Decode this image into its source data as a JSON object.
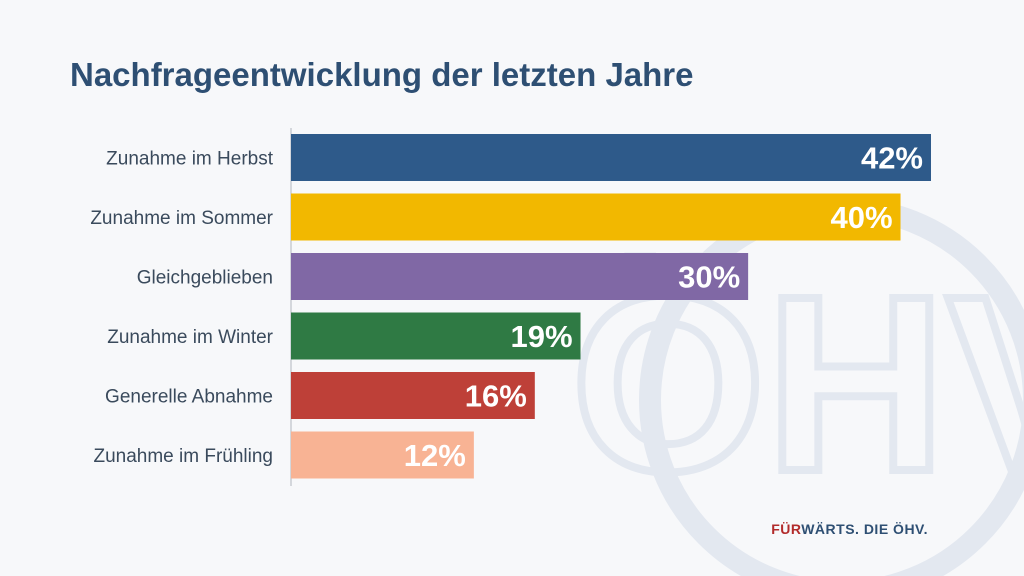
{
  "slide": {
    "title": "Nachfrageentwicklung der letzten Jahre",
    "slogan_part1": "FÜR",
    "slogan_part2": "WÄRTS. DIE ÖHV."
  },
  "watermark": {
    "text": "ÖHV",
    "color": "#dfe4ee"
  },
  "chart_data": {
    "type": "bar",
    "orientation": "horizontal",
    "categories": [
      "Zunahme im Herbst",
      "Zunahme im Sommer",
      "Gleichgeblieben",
      "Zunahme im Winter",
      "Generelle Abnahme",
      "Zunahme im Frühling"
    ],
    "values": [
      42,
      40,
      30,
      19,
      16,
      12
    ],
    "value_labels": [
      "42%",
      "40%",
      "30%",
      "19%",
      "16%",
      "12%"
    ],
    "colors": [
      "#2e5a8a",
      "#f2b800",
      "#8068a5",
      "#2f7a44",
      "#be4038",
      "#f8b394"
    ],
    "xlim": [
      0,
      42
    ],
    "grid": false,
    "legend": "none"
  }
}
